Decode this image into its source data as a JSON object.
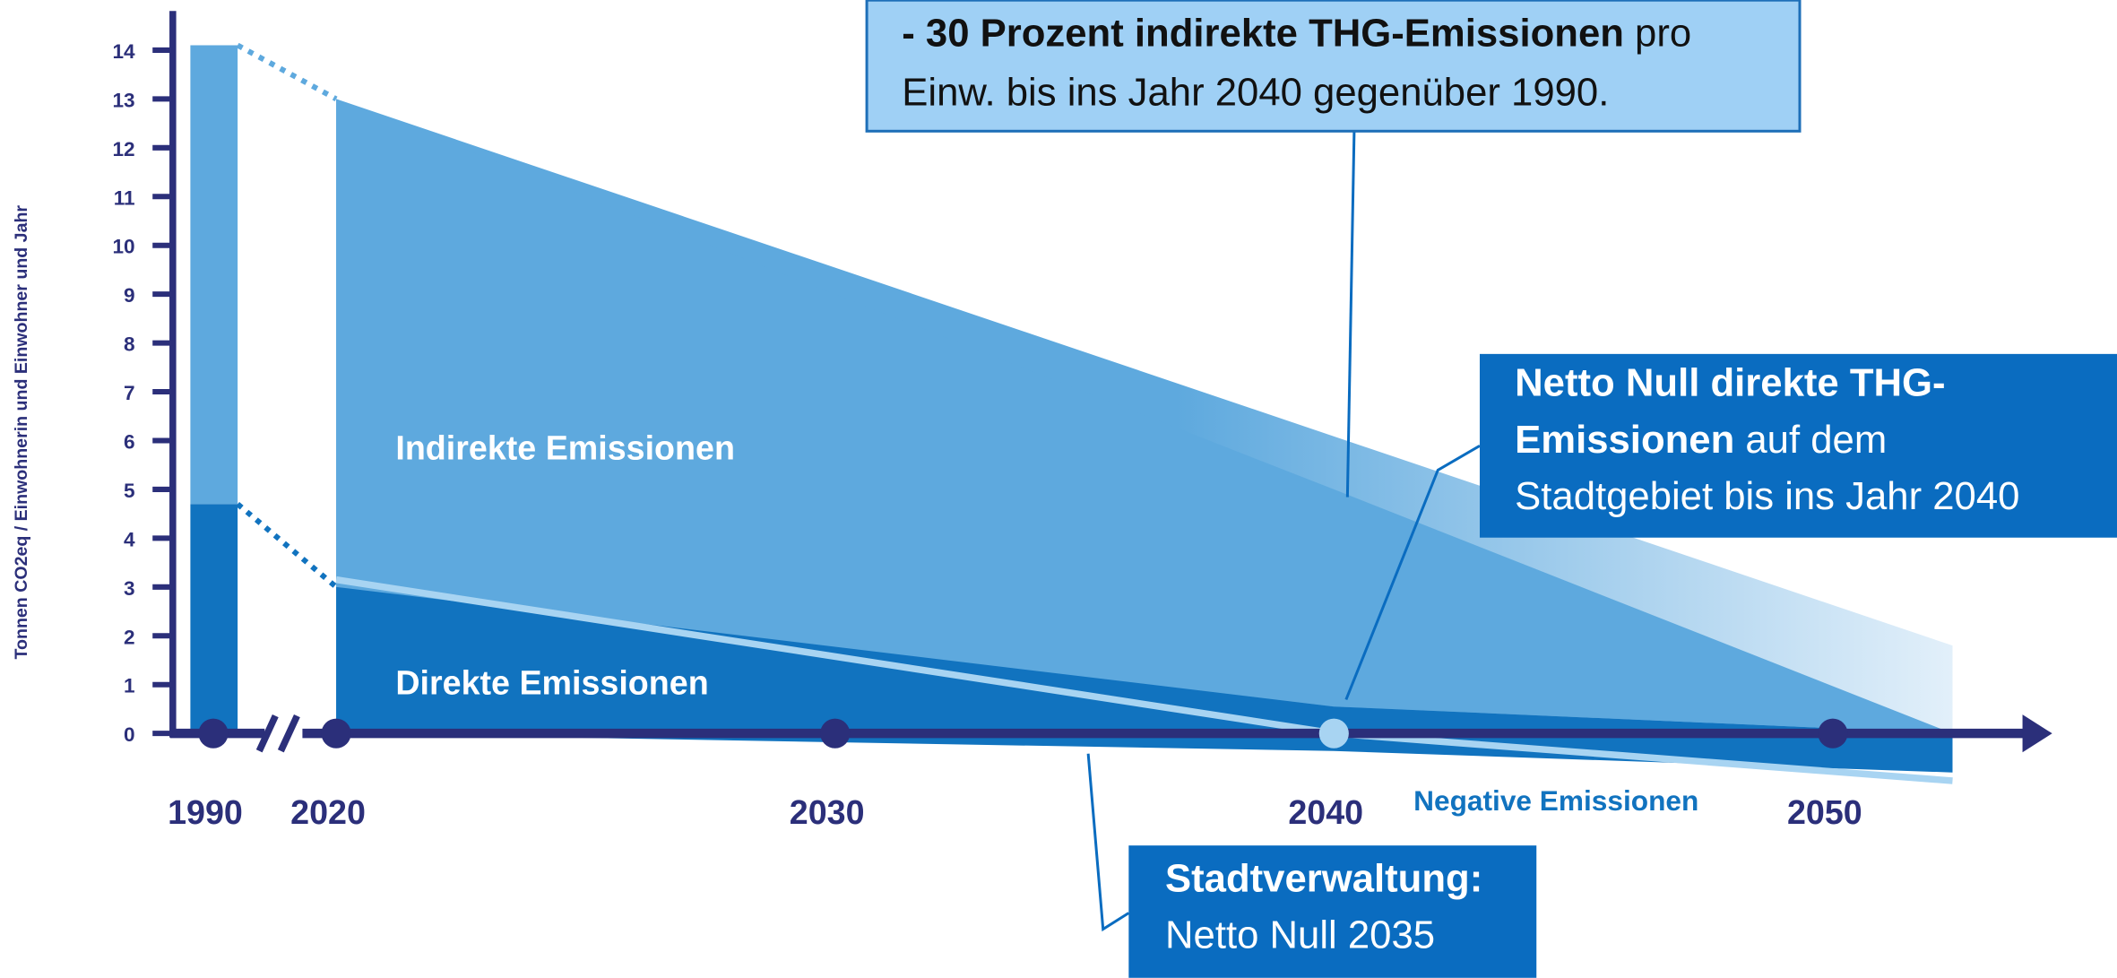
{
  "chart_data": {
    "type": "area",
    "y_label": "Tonnen CO2eq / Einwohnerin und Einwohner und Jahr",
    "ylim": [
      0,
      14
    ],
    "yticks": [
      0,
      1,
      2,
      3,
      4,
      5,
      6,
      7,
      8,
      9,
      10,
      11,
      12,
      13,
      14
    ],
    "xticks": [
      1990,
      2020,
      2030,
      2040,
      2050
    ],
    "axis_break": true,
    "bar_1990": {
      "x": 1990,
      "direct": 4.7,
      "indirect": 9.4
    },
    "series": [
      {
        "name": "Direkte Emissionen",
        "color": "#1173bf",
        "x": [
          2020,
          2040,
          2052.4
        ],
        "values": [
          3.0,
          0.55,
          0.0
        ]
      },
      {
        "name": "Indirekte Emissionen",
        "color": "#5ea9de",
        "x": [
          2020,
          2040,
          2052.4
        ],
        "values": [
          10.0,
          4.45,
          0.0
        ]
      },
      {
        "name": "Negative Emissionen",
        "color": "#1173bf",
        "x": [
          2020,
          2040,
          2052.4
        ],
        "values": [
          0,
          -0.36,
          -0.8
        ]
      }
    ],
    "band": {
      "color": "#d6e9f8",
      "x": [
        2020,
        2052.4
      ],
      "values": [
        13.0,
        1.8
      ]
    },
    "line": {
      "color": "#a8d4f2",
      "x": [
        2020,
        2040,
        2052.4
      ],
      "values": [
        3.15,
        0,
        -0.97
      ]
    },
    "annotations": [
      {
        "lines": [
          [
            {
              "text": "- 30 Prozent indirekte THG-Emissionen",
              "bold": true
            },
            {
              "text": " pro"
            }
          ],
          [
            {
              "text": "Einw. bis ins Jahr 2040 gegenüber 1990."
            }
          ]
        ]
      },
      {
        "lines": [
          [
            {
              "text": "Netto Null direkte THG-",
              "bold": true
            }
          ],
          [
            {
              "text": "Emissionen",
              "bold": true
            },
            {
              "text": " auf dem"
            }
          ],
          [
            {
              "text": "Stadtgebiet bis ins Jahr 2040"
            }
          ]
        ]
      },
      {
        "lines": [
          [
            {
              "text": "Stadtverwaltung:",
              "bold": true
            }
          ],
          [
            {
              "text": "Netto Null 2035"
            }
          ]
        ]
      }
    ]
  }
}
